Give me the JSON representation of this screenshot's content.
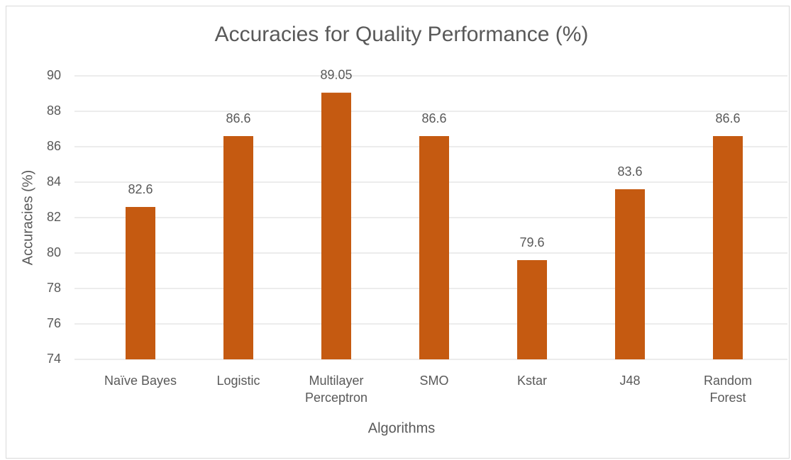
{
  "chart_data": {
    "type": "bar",
    "title": "Accuracies for Quality Performance (%)",
    "x_label": "Algorithms",
    "y_label": "Accuracies (%)",
    "categories": [
      "Naïve Bayes",
      "Logistic",
      "Multilayer Perceptron",
      "SMO",
      "Kstar",
      "J48",
      "Random Forest"
    ],
    "values": [
      82.6,
      86.6,
      89.05,
      86.6,
      79.6,
      83.6,
      86.6
    ],
    "color": "#c55a11",
    "ylim": [
      74,
      90
    ],
    "yticks": [
      74,
      76,
      78,
      80,
      82,
      84,
      86,
      88,
      90
    ],
    "grid": true
  }
}
